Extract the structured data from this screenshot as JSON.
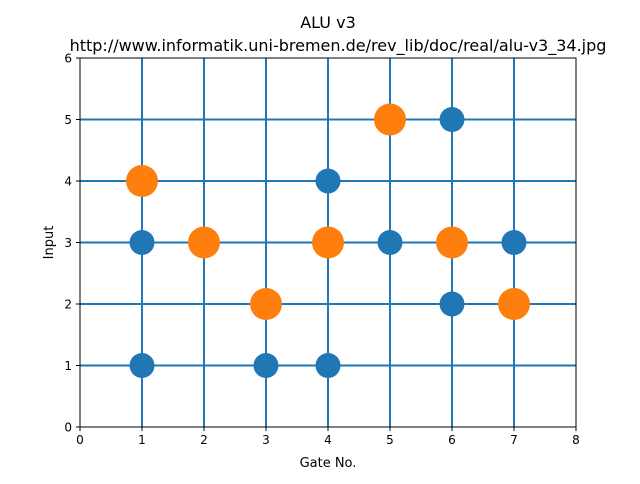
{
  "chart_data": {
    "type": "scatter",
    "title": "ALU v3",
    "subtitle": "http://www.informatik.uni-bremen.de/rev_lib/doc/real/alu-v3_34.jpg",
    "xlabel": "Gate No.",
    "ylabel": "Input",
    "xlim": [
      0,
      8
    ],
    "ylim": [
      0,
      6
    ],
    "xticks": [
      0,
      1,
      2,
      3,
      4,
      5,
      6,
      7,
      8
    ],
    "yticks": [
      0,
      1,
      2,
      3,
      4,
      5,
      6
    ],
    "grid": true,
    "legend": false,
    "series": [
      {
        "color": "#1f77b4",
        "points": [
          [
            1,
            1
          ],
          [
            1,
            3
          ],
          [
            3,
            1
          ],
          [
            4,
            1
          ],
          [
            4,
            4
          ],
          [
            5,
            3
          ],
          [
            6,
            2
          ],
          [
            6,
            5
          ],
          [
            7,
            3
          ]
        ]
      },
      {
        "color": "#ff7f0e",
        "points": [
          [
            1,
            4
          ],
          [
            2,
            3
          ],
          [
            3,
            2
          ],
          [
            4,
            3
          ],
          [
            5,
            5
          ],
          [
            6,
            3
          ],
          [
            7,
            2
          ]
        ]
      }
    ],
    "gridlines_x": [
      1,
      2,
      3,
      4,
      5,
      6,
      7
    ],
    "gridlines_y": [
      1,
      2,
      3,
      4,
      5
    ],
    "line_color": "#1f77b4"
  }
}
